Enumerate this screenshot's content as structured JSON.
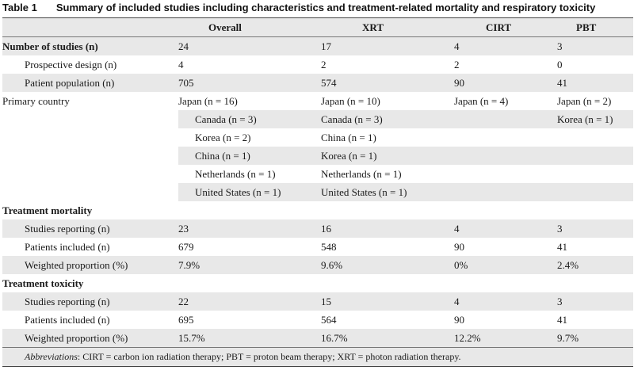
{
  "caption": {
    "number": "Table 1",
    "title": "Summary of included studies including characteristics and treatment-related mortality and respiratory toxicity"
  },
  "headers": [
    "",
    "Overall",
    "XRT",
    "CIRT",
    "PBT"
  ],
  "rows": {
    "num_studies": {
      "label": "Number of studies (n)",
      "overall": "24",
      "xrt": "17",
      "cirt": "4",
      "pbt": "3"
    },
    "prospective": {
      "label": "Prospective design (n)",
      "overall": "4",
      "xrt": "2",
      "cirt": "2",
      "pbt": "0"
    },
    "population": {
      "label": "Patient population (n)",
      "overall": "705",
      "xrt": "574",
      "cirt": "90",
      "pbt": "41"
    },
    "country": {
      "label": "Primary country",
      "overall": [
        "Japan (n = 16)",
        "Canada (n = 3)",
        "Korea (n = 2)",
        "China (n = 1)",
        "Netherlands (n = 1)",
        "United States (n = 1)"
      ],
      "xrt": [
        "Japan (n = 10)",
        "Canada (n = 3)",
        "China (n = 1)",
        "Korea (n = 1)",
        "Netherlands (n = 1)",
        "United States (n = 1)"
      ],
      "cirt": [
        "Japan (n = 4)"
      ],
      "pbt": [
        "Japan (n = 2)",
        "Korea (n = 1)"
      ]
    },
    "mortality_header": "Treatment mortality",
    "mort_studies": {
      "label": "Studies reporting (n)",
      "overall": "23",
      "xrt": "16",
      "cirt": "4",
      "pbt": "3"
    },
    "mort_patients": {
      "label": "Patients included (n)",
      "overall": "679",
      "xrt": "548",
      "cirt": "90",
      "pbt": "41"
    },
    "mort_weighted": {
      "label": "Weighted proportion (%)",
      "overall": "7.9%",
      "xrt": "9.6%",
      "cirt": "0%",
      "pbt": "2.4%"
    },
    "toxicity_header": "Treatment toxicity",
    "tox_studies": {
      "label": "Studies reporting (n)",
      "overall": "22",
      "xrt": "15",
      "cirt": "4",
      "pbt": "3"
    },
    "tox_patients": {
      "label": "Patients included (n)",
      "overall": "695",
      "xrt": "564",
      "cirt": "90",
      "pbt": "41"
    },
    "tox_weighted": {
      "label": "Weighted proportion (%)",
      "overall": "15.7%",
      "xrt": "16.7%",
      "cirt": "12.2%",
      "pbt": "9.7%"
    }
  },
  "footnote": {
    "label": "Abbreviations",
    "text": ": CIRT = carbon ion radiation therapy; PBT = proton beam therapy; XRT = photon radiation therapy."
  }
}
